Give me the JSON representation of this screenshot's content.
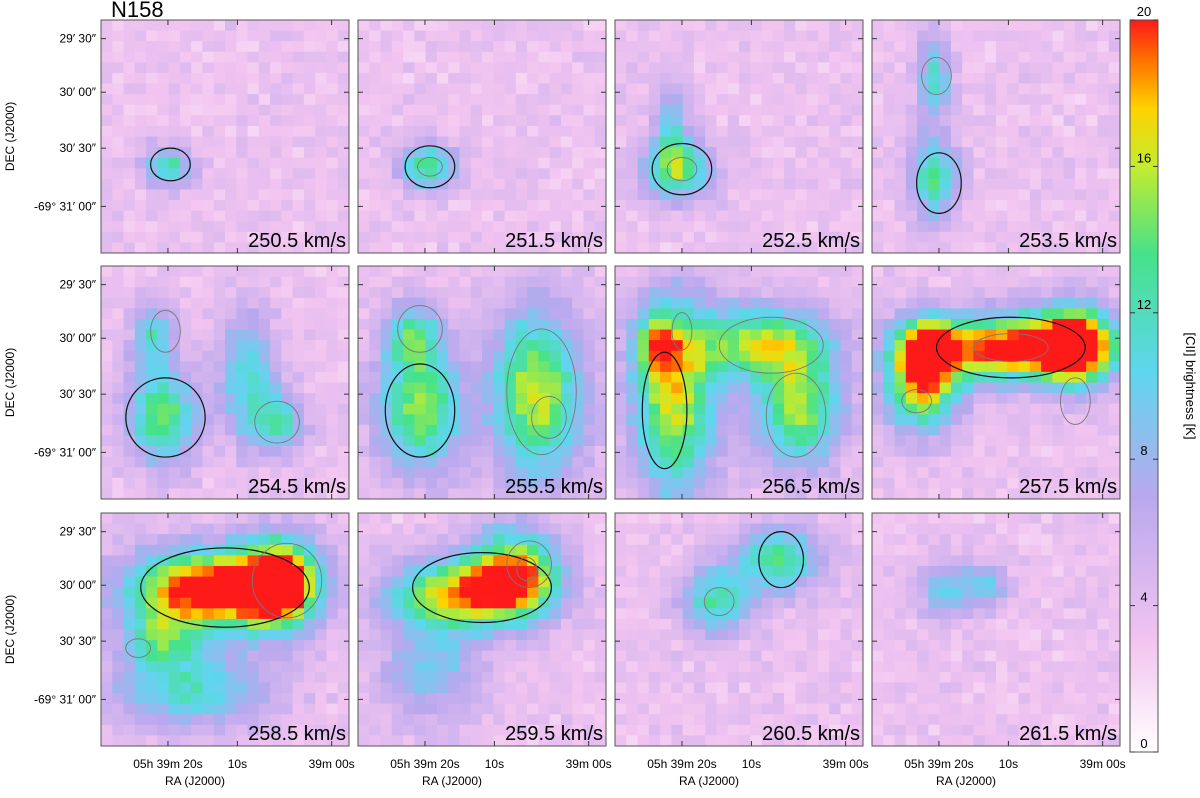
{
  "chart_data": {
    "type": "heatmap",
    "title": "N158",
    "xlabel": "RA (J2000)",
    "ylabel": "DEC (J2000)",
    "xticks": [
      "05h 39m 20s",
      "10s",
      "39m 00s"
    ],
    "yticks": [
      "29′ 30″",
      "30′ 00″",
      "30′ 30″",
      "-69° 31′ 00″"
    ],
    "colorbar": {
      "label": "[CII] brightness [K]",
      "range": [
        0,
        20
      ],
      "ticks": [
        0,
        4,
        8,
        12,
        16,
        20
      ]
    },
    "channels": [
      {
        "velocity": "250.5 km/s",
        "sources": [
          {
            "x": 0.27,
            "y": 0.63,
            "a": 0.07,
            "b": 0.06,
            "peak": 9
          }
        ],
        "contours": [
          {
            "x": 0.28,
            "y": 0.62,
            "a": 0.08,
            "b": 0.07
          }
        ]
      },
      {
        "velocity": "251.5 km/s",
        "sources": [
          {
            "x": 0.28,
            "y": 0.63,
            "a": 0.08,
            "b": 0.07,
            "peak": 10
          }
        ],
        "contours": [
          {
            "x": 0.29,
            "y": 0.63,
            "a": 0.1,
            "b": 0.09
          },
          {
            "x": 0.29,
            "y": 0.63,
            "a": 0.05,
            "b": 0.04
          }
        ]
      },
      {
        "velocity": "252.5 km/s",
        "sources": [
          {
            "x": 0.25,
            "y": 0.64,
            "a": 0.1,
            "b": 0.09,
            "peak": 11
          },
          {
            "x": 0.23,
            "y": 0.45,
            "a": 0.05,
            "b": 0.12,
            "peak": 6
          }
        ],
        "contours": [
          {
            "x": 0.27,
            "y": 0.64,
            "a": 0.12,
            "b": 0.11
          },
          {
            "x": 0.27,
            "y": 0.64,
            "a": 0.06,
            "b": 0.05
          }
        ]
      },
      {
        "velocity": "253.5 km/s",
        "sources": [
          {
            "x": 0.25,
            "y": 0.68,
            "a": 0.07,
            "b": 0.12,
            "peak": 10
          },
          {
            "x": 0.25,
            "y": 0.25,
            "a": 0.05,
            "b": 0.12,
            "peak": 8
          }
        ],
        "contours": [
          {
            "x": 0.27,
            "y": 0.7,
            "a": 0.09,
            "b": 0.13
          },
          {
            "x": 0.26,
            "y": 0.24,
            "a": 0.06,
            "b": 0.08
          }
        ]
      },
      {
        "velocity": "254.5 km/s",
        "sources": [
          {
            "x": 0.25,
            "y": 0.65,
            "a": 0.1,
            "b": 0.14,
            "peak": 11
          },
          {
            "x": 0.21,
            "y": 0.3,
            "a": 0.06,
            "b": 0.1,
            "peak": 8
          },
          {
            "x": 0.59,
            "y": 0.47,
            "a": 0.08,
            "b": 0.18,
            "peak": 8
          },
          {
            "x": 0.71,
            "y": 0.67,
            "a": 0.08,
            "b": 0.09,
            "peak": 8
          }
        ],
        "contours": [
          {
            "x": 0.26,
            "y": 0.65,
            "a": 0.16,
            "b": 0.17
          },
          {
            "x": 0.26,
            "y": 0.28,
            "a": 0.06,
            "b": 0.09
          },
          {
            "x": 0.71,
            "y": 0.67,
            "a": 0.09,
            "b": 0.09
          }
        ]
      },
      {
        "velocity": "255.5 km/s",
        "sources": [
          {
            "x": 0.25,
            "y": 0.62,
            "a": 0.12,
            "b": 0.18,
            "peak": 12
          },
          {
            "x": 0.22,
            "y": 0.3,
            "a": 0.08,
            "b": 0.1,
            "peak": 9
          },
          {
            "x": 0.72,
            "y": 0.55,
            "a": 0.13,
            "b": 0.26,
            "peak": 13
          }
        ],
        "contours": [
          {
            "x": 0.25,
            "y": 0.62,
            "a": 0.14,
            "b": 0.2
          },
          {
            "x": 0.25,
            "y": 0.27,
            "a": 0.09,
            "b": 0.1
          },
          {
            "x": 0.74,
            "y": 0.54,
            "a": 0.14,
            "b": 0.27
          },
          {
            "x": 0.77,
            "y": 0.65,
            "a": 0.07,
            "b": 0.09
          }
        ]
      },
      {
        "velocity": "256.5 km/s",
        "sources": [
          {
            "x": 0.24,
            "y": 0.57,
            "a": 0.12,
            "b": 0.3,
            "peak": 13
          },
          {
            "x": 0.59,
            "y": 0.33,
            "a": 0.2,
            "b": 0.11,
            "peak": 12
          },
          {
            "x": 0.74,
            "y": 0.62,
            "a": 0.12,
            "b": 0.17,
            "peak": 12
          },
          {
            "x": 0.17,
            "y": 0.34,
            "a": 0.06,
            "b": 0.1,
            "peak": 8
          }
        ],
        "contours": [
          {
            "x": 0.2,
            "y": 0.62,
            "a": 0.09,
            "b": 0.25
          },
          {
            "x": 0.63,
            "y": 0.34,
            "a": 0.21,
            "b": 0.12
          },
          {
            "x": 0.73,
            "y": 0.64,
            "a": 0.12,
            "b": 0.18
          },
          {
            "x": 0.27,
            "y": 0.28,
            "a": 0.04,
            "b": 0.08
          }
        ]
      },
      {
        "velocity": "257.5 km/s",
        "sources": [
          {
            "x": 0.58,
            "y": 0.35,
            "a": 0.28,
            "b": 0.1,
            "peak": 18
          },
          {
            "x": 0.2,
            "y": 0.53,
            "a": 0.1,
            "b": 0.13,
            "peak": 14
          },
          {
            "x": 0.82,
            "y": 0.34,
            "a": 0.1,
            "b": 0.12,
            "peak": 14
          },
          {
            "x": 0.22,
            "y": 0.35,
            "a": 0.08,
            "b": 0.09,
            "peak": 11
          }
        ],
        "contours": [
          {
            "x": 0.56,
            "y": 0.35,
            "a": 0.3,
            "b": 0.13
          },
          {
            "x": 0.56,
            "y": 0.35,
            "a": 0.15,
            "b": 0.06
          },
          {
            "x": 0.18,
            "y": 0.58,
            "a": 0.06,
            "b": 0.05
          },
          {
            "x": 0.82,
            "y": 0.58,
            "a": 0.06,
            "b": 0.1
          }
        ]
      },
      {
        "velocity": "258.5 km/s",
        "sources": [
          {
            "x": 0.43,
            "y": 0.33,
            "a": 0.22,
            "b": 0.12,
            "peak": 19
          },
          {
            "x": 0.72,
            "y": 0.3,
            "a": 0.11,
            "b": 0.13,
            "peak": 18
          },
          {
            "x": 0.24,
            "y": 0.55,
            "a": 0.1,
            "b": 0.09,
            "peak": 8
          },
          {
            "x": 0.36,
            "y": 0.76,
            "a": 0.22,
            "b": 0.12,
            "peak": 8
          }
        ],
        "contours": [
          {
            "x": 0.5,
            "y": 0.32,
            "a": 0.34,
            "b": 0.17
          },
          {
            "x": 0.75,
            "y": 0.29,
            "a": 0.14,
            "b": 0.16
          },
          {
            "x": 0.15,
            "y": 0.58,
            "a": 0.05,
            "b": 0.04
          }
        ]
      },
      {
        "velocity": "259.5 km/s",
        "sources": [
          {
            "x": 0.63,
            "y": 0.26,
            "a": 0.13,
            "b": 0.13,
            "peak": 15
          },
          {
            "x": 0.4,
            "y": 0.35,
            "a": 0.2,
            "b": 0.1,
            "peak": 13
          },
          {
            "x": 0.3,
            "y": 0.66,
            "a": 0.14,
            "b": 0.17,
            "peak": 6
          }
        ],
        "contours": [
          {
            "x": 0.5,
            "y": 0.32,
            "a": 0.28,
            "b": 0.15
          },
          {
            "x": 0.69,
            "y": 0.22,
            "a": 0.09,
            "b": 0.1
          },
          {
            "x": 0.68,
            "y": 0.24,
            "a": 0.04,
            "b": 0.05
          }
        ]
      },
      {
        "velocity": "260.5 km/s",
        "sources": [
          {
            "x": 0.66,
            "y": 0.2,
            "a": 0.12,
            "b": 0.1,
            "peak": 10
          },
          {
            "x": 0.41,
            "y": 0.38,
            "a": 0.1,
            "b": 0.1,
            "peak": 9
          }
        ],
        "contours": [
          {
            "x": 0.67,
            "y": 0.2,
            "a": 0.09,
            "b": 0.12
          },
          {
            "x": 0.42,
            "y": 0.38,
            "a": 0.06,
            "b": 0.06
          }
        ]
      },
      {
        "velocity": "261.5 km/s",
        "sources": [
          {
            "x": 0.3,
            "y": 0.33,
            "a": 0.08,
            "b": 0.08,
            "peak": 7
          },
          {
            "x": 0.47,
            "y": 0.31,
            "a": 0.06,
            "b": 0.06,
            "peak": 6
          }
        ],
        "contours": []
      }
    ]
  }
}
